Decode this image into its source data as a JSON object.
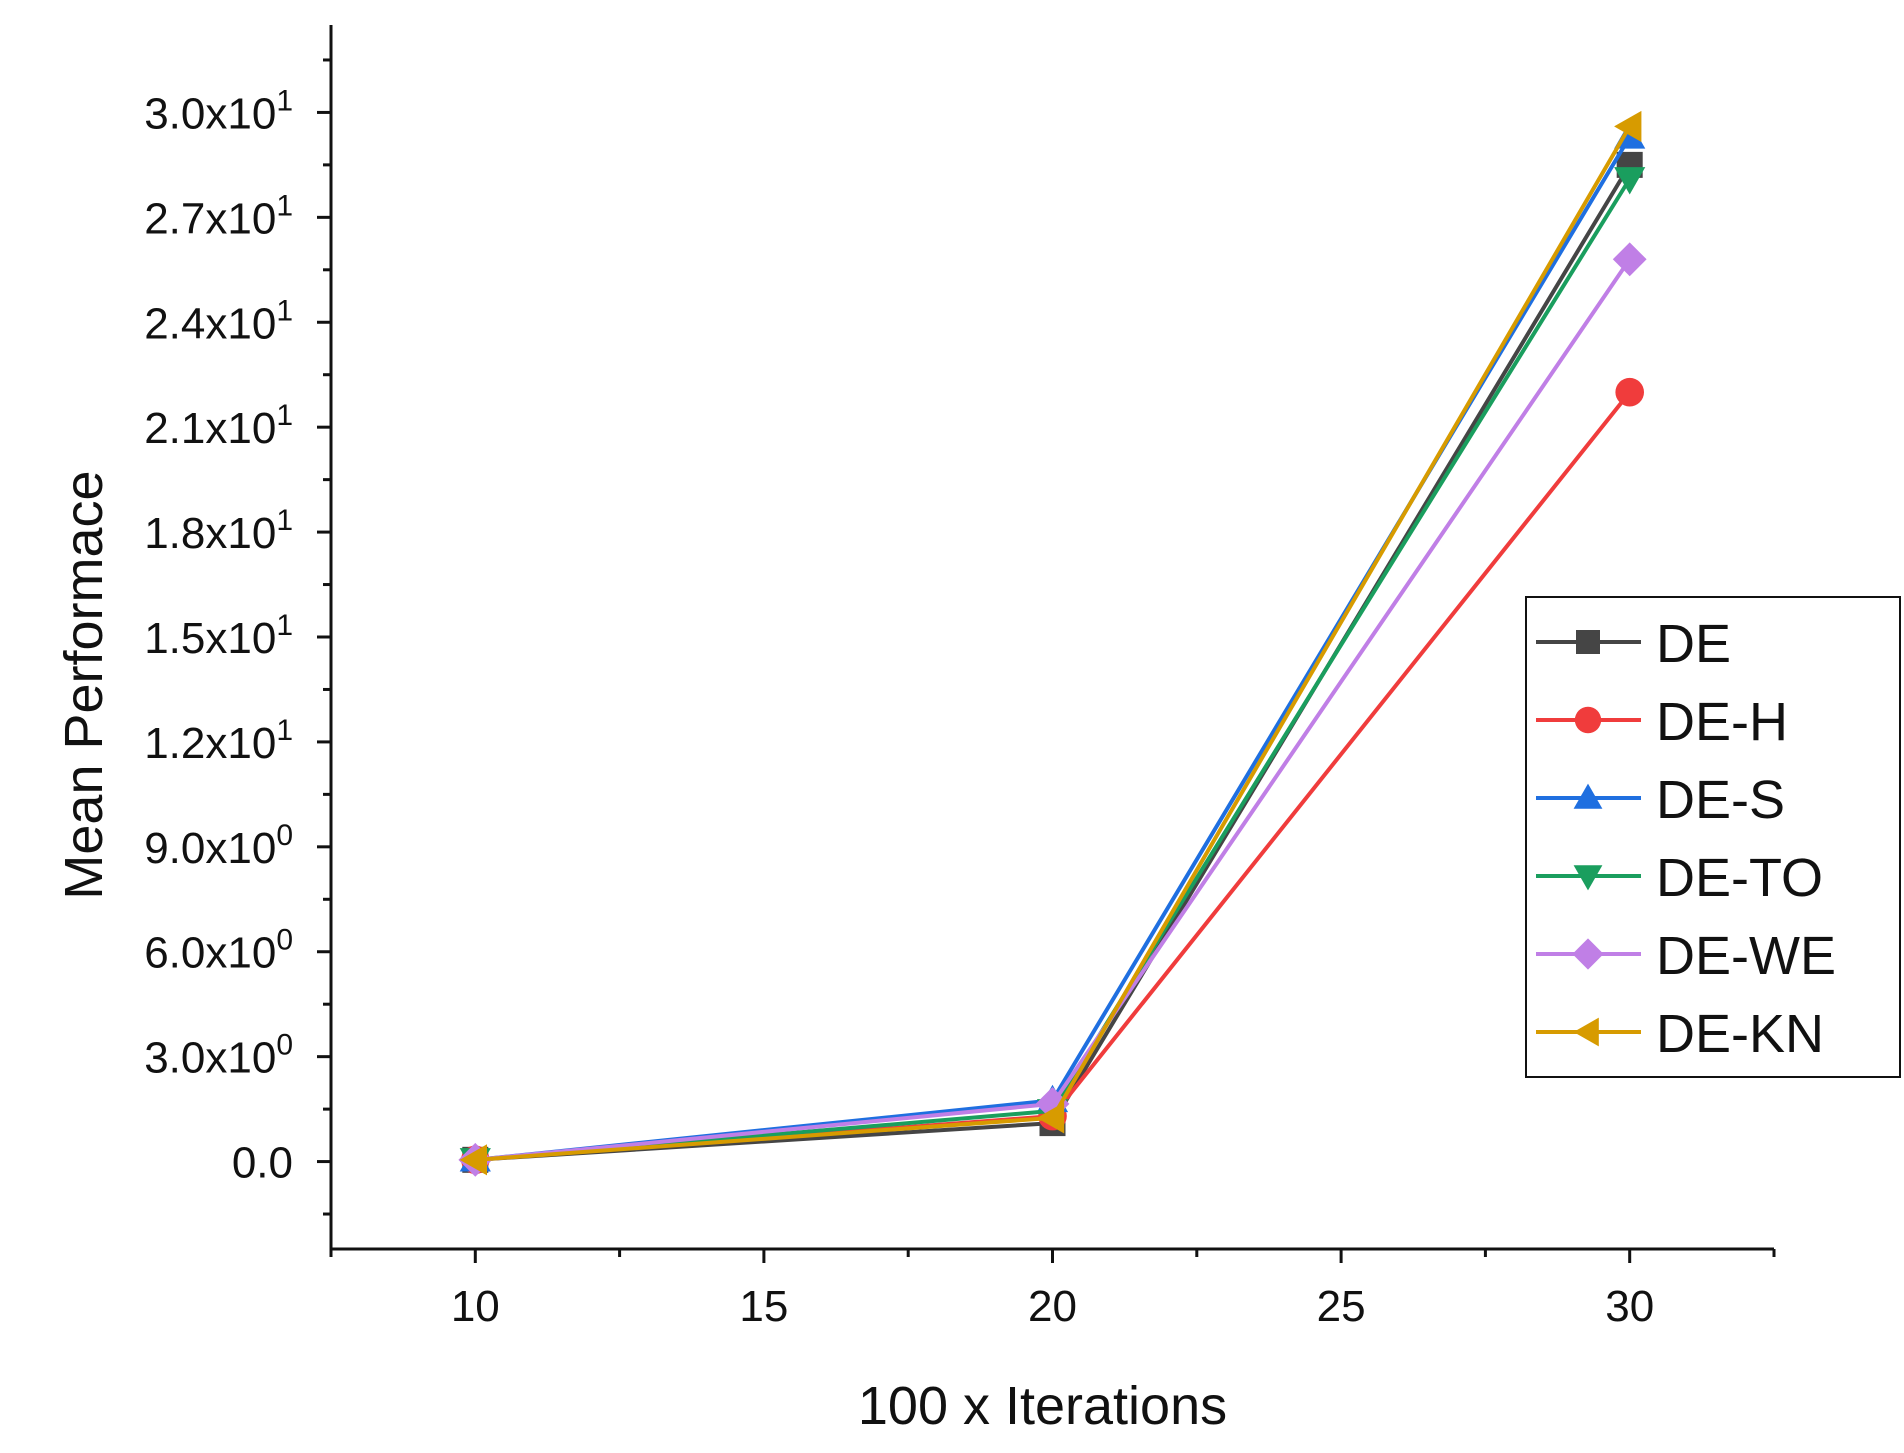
{
  "chart_data": {
    "type": "line",
    "title": "",
    "xlabel": "100 x Iterations",
    "ylabel": "Mean Performace",
    "x": [
      10,
      20,
      30
    ],
    "xlim": [
      7.5,
      32.5
    ],
    "ylim": [
      -2.5,
      32.5
    ],
    "x_ticks": [
      10,
      15,
      20,
      25,
      30
    ],
    "x_tick_labels": [
      "10",
      "15",
      "20",
      "25",
      "30"
    ],
    "y_ticks": [
      {
        "value": 0,
        "mantissa": "0.0",
        "exp": ""
      },
      {
        "value": 3,
        "mantissa": "3.0x10",
        "exp": "0"
      },
      {
        "value": 6,
        "mantissa": "6.0x10",
        "exp": "0"
      },
      {
        "value": 9,
        "mantissa": "9.0x10",
        "exp": "0"
      },
      {
        "value": 12,
        "mantissa": "1.2x10",
        "exp": "1"
      },
      {
        "value": 15,
        "mantissa": "1.5x10",
        "exp": "1"
      },
      {
        "value": 18,
        "mantissa": "1.8x10",
        "exp": "1"
      },
      {
        "value": 21,
        "mantissa": "2.1x10",
        "exp": "1"
      },
      {
        "value": 24,
        "mantissa": "2.4x10",
        "exp": "1"
      },
      {
        "value": 27,
        "mantissa": "2.7x10",
        "exp": "1"
      },
      {
        "value": 30,
        "mantissa": "3.0x10",
        "exp": "1"
      }
    ],
    "grid": false,
    "legend_position": "right",
    "series": [
      {
        "name": "DE",
        "color": "#454545",
        "marker": "square",
        "values": [
          0.05,
          1.1,
          28.5
        ]
      },
      {
        "name": "DE-H",
        "color": "#f03c3c",
        "marker": "circle",
        "values": [
          0.05,
          1.3,
          22.0
        ]
      },
      {
        "name": "DE-S",
        "color": "#1f6fe0",
        "marker": "triangle-up",
        "values": [
          0.05,
          1.75,
          29.3
        ]
      },
      {
        "name": "DE-TO",
        "color": "#1a9e5e",
        "marker": "triangle-down",
        "values": [
          0.05,
          1.45,
          28.1
        ]
      },
      {
        "name": "DE-WE",
        "color": "#c07fe6",
        "marker": "diamond",
        "values": [
          0.05,
          1.65,
          25.8
        ]
      },
      {
        "name": "DE-KN",
        "color": "#d79b00",
        "marker": "triangle-left",
        "values": [
          0.05,
          1.25,
          29.6
        ]
      }
    ]
  }
}
